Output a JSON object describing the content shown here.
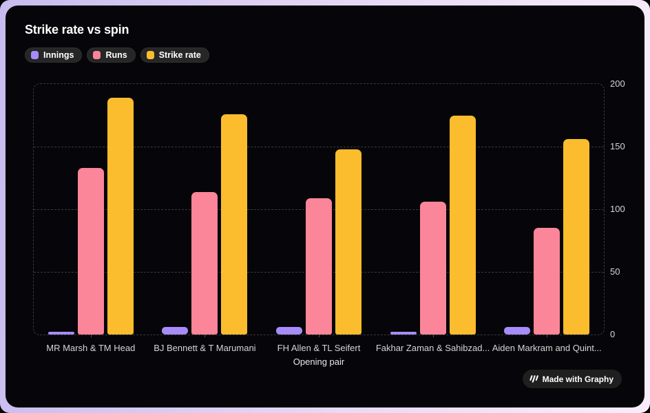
{
  "badge": {
    "label": "Made with Graphy",
    "icon": "graphy-logo-icon"
  },
  "colors": {
    "frame_gradient_left": "#c8bbef",
    "frame_gradient_right": "#f8edf9",
    "card_background": "#060509",
    "grid": "#3a3a3a",
    "axis_text": "#d6d6d6",
    "legend_pill_bg": "#262626"
  },
  "chart_data": {
    "type": "bar",
    "title": "Strike rate vs spin",
    "xlabel": "Opening pair",
    "ylabel": "",
    "ylim": [
      0,
      200
    ],
    "yticks": [
      0,
      50,
      100,
      150,
      200
    ],
    "grid": "horizontal-dashed",
    "legend_position": "top-left",
    "categories": [
      "MR Marsh & TM Head",
      "BJ Bennett & T Marumani",
      "FH Allen & TL Seifert",
      "Fakhar Zaman & Sahibzad...",
      "Aiden Markram and Quint..."
    ],
    "series": [
      {
        "name": "Innings",
        "color": "#a78bfa",
        "values": [
          2,
          6,
          6,
          2,
          6
        ]
      },
      {
        "name": "Runs",
        "color": "#fb8599",
        "values": [
          133,
          114,
          109,
          106,
          85
        ]
      },
      {
        "name": "Strike rate",
        "color": "#fbbd2d",
        "values": [
          189,
          176,
          148,
          175,
          156
        ]
      }
    ]
  }
}
